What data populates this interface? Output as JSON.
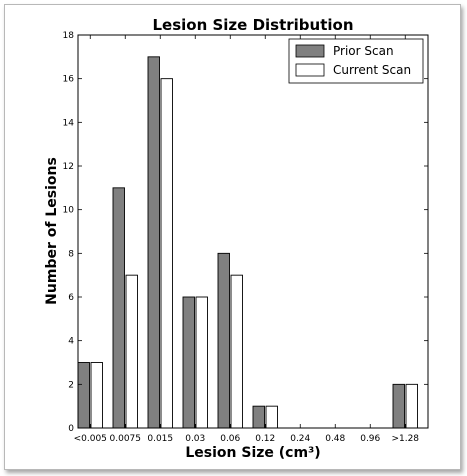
{
  "chart_data": {
    "type": "bar",
    "title": "Lesion Size Distribution",
    "xlabel": "Lesion Size (cm³)",
    "ylabel": "Number of Lesions",
    "categories": [
      "<0.005",
      "0.0075",
      "0.015",
      "0.03",
      "0.06",
      "0.12",
      "0.24",
      "0.48",
      "0.96",
      ">1.28"
    ],
    "series": [
      {
        "name": "Prior Scan",
        "values": [
          3,
          11,
          17,
          6,
          8,
          1,
          0,
          0,
          0,
          2
        ],
        "color": "#808080"
      },
      {
        "name": "Current Scan",
        "values": [
          3,
          7,
          16,
          6,
          7,
          1,
          0,
          0,
          0,
          2
        ],
        "color": "#ffffff"
      }
    ],
    "ylim": [
      0,
      18
    ],
    "yticks": [
      0,
      2,
      4,
      6,
      8,
      10,
      12,
      14,
      16,
      18
    ],
    "legend_position": "top-right",
    "grid": false
  }
}
